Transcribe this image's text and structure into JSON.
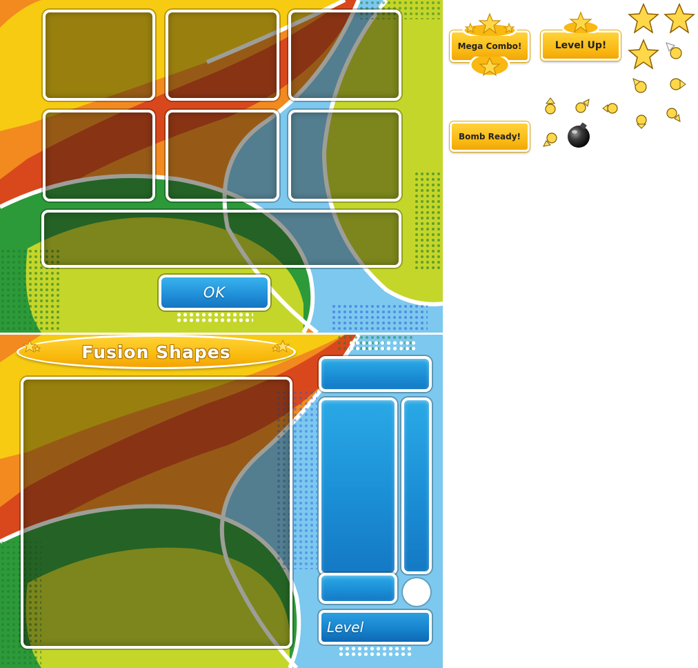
{
  "top_panel": {
    "ok_label": "OK"
  },
  "bottom_panel": {
    "title": "Fusion Shapes",
    "level_label": "Level"
  },
  "badges": {
    "mega_combo": "Mega Combo!",
    "level_up": "Level Up!",
    "bomb_ready": "Bomb Ready!"
  },
  "colors": {
    "orange": "#f28a1f",
    "yellow": "#f7cb12",
    "red": "#d9481c",
    "green": "#2d9a3a",
    "lime": "#c4d62a",
    "light_blue": "#7cc8ef",
    "button_blue": "#1f8ed8",
    "badge_yellow": "#f9b812"
  },
  "sprites": [
    "star-icon",
    "arrow-icon",
    "bomb-icon"
  ]
}
